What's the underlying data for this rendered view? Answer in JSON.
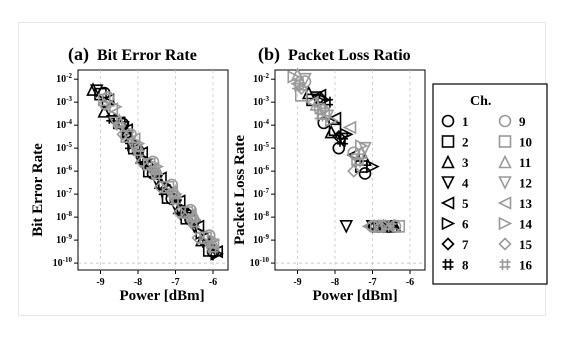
{
  "chart_data": [
    {
      "type": "scatter",
      "panel_label": "(a)",
      "title": "Bit Error Rate",
      "xlabel": "Power [dBm]",
      "ylabel": "Bit Error Rate",
      "xlim": [
        -9.6,
        -5.6
      ],
      "xticks": [
        -9,
        -8,
        -7,
        -6
      ],
      "xtick_labels": [
        "-9",
        "-8",
        "-7",
        "-6"
      ],
      "ylim_log10": [
        -10.3,
        -1.6
      ],
      "ylog": true,
      "yticks_exp": [
        -2,
        -3,
        -4,
        -5,
        -6,
        -7,
        -8,
        -9,
        -10
      ],
      "ytick_labels": [
        "10-2",
        "10-3",
        "10-4",
        "10-5",
        "10-6",
        "10-7",
        "10-8",
        "10-9",
        "10-10"
      ],
      "grid": "vertical-dashed",
      "floor_line": -10,
      "series": [
        {
          "name": "1",
          "points": [
            [
              -8.9,
              -2.6
            ],
            [
              -8.4,
              -3.95
            ],
            [
              -8.0,
              -5.1
            ],
            [
              -7.6,
              -6.1
            ],
            [
              -7.1,
              -7.2
            ],
            [
              -6.6,
              -8.1
            ],
            [
              -6.0,
              -9.5
            ]
          ]
        },
        {
          "name": "2",
          "points": [
            [
              -9.0,
              -2.65
            ],
            [
              -8.5,
              -3.9
            ],
            [
              -8.1,
              -5.0
            ],
            [
              -7.7,
              -6.0
            ],
            [
              -7.2,
              -7.15
            ],
            [
              -6.7,
              -8.05
            ],
            [
              -6.1,
              -9.45
            ]
          ]
        },
        {
          "name": "3",
          "points": [
            [
              -9.2,
              -2.45
            ],
            [
              -8.9,
              -3.4
            ],
            [
              -8.3,
              -4.3
            ],
            [
              -7.9,
              -5.4
            ],
            [
              -7.4,
              -6.5
            ],
            [
              -6.9,
              -7.6
            ],
            [
              -6.3,
              -9.0
            ]
          ]
        },
        {
          "name": "4",
          "points": [
            [
              -9.1,
              -2.5
            ],
            [
              -8.4,
              -4.1
            ],
            [
              -8.0,
              -5.3
            ],
            [
              -7.5,
              -6.4
            ],
            [
              -7.0,
              -7.5
            ],
            [
              -6.5,
              -8.4
            ],
            [
              -6.0,
              -9.6
            ]
          ]
        },
        {
          "name": "5",
          "points": [
            [
              -8.8,
              -2.9
            ],
            [
              -8.3,
              -4.2
            ],
            [
              -7.9,
              -5.2
            ],
            [
              -7.4,
              -6.3
            ],
            [
              -6.9,
              -7.3
            ],
            [
              -6.4,
              -8.4
            ],
            [
              -5.9,
              -9.5
            ]
          ]
        },
        {
          "name": "6",
          "points": [
            [
              -8.8,
              -3.0
            ],
            [
              -8.3,
              -4.3
            ],
            [
              -7.8,
              -5.5
            ],
            [
              -7.3,
              -6.6
            ],
            [
              -6.8,
              -7.7
            ],
            [
              -6.3,
              -8.7
            ],
            [
              -5.9,
              -9.6
            ]
          ]
        },
        {
          "name": "7",
          "points": [
            [
              -8.6,
              -3.8
            ],
            [
              -8.2,
              -4.7
            ],
            [
              -7.7,
              -5.8
            ],
            [
              -7.2,
              -6.8
            ],
            [
              -6.7,
              -7.8
            ],
            [
              -6.2,
              -8.9
            ]
          ]
        },
        {
          "name": "8",
          "points": [
            [
              -8.7,
              -3.7
            ],
            [
              -8.2,
              -4.9
            ],
            [
              -7.8,
              -5.7
            ],
            [
              -7.3,
              -6.9
            ],
            [
              -6.8,
              -7.9
            ],
            [
              -6.2,
              -9.1
            ]
          ]
        },
        {
          "name": "9",
          "points": [
            [
              -8.8,
              -2.8
            ],
            [
              -8.2,
              -4.4
            ],
            [
              -7.6,
              -5.6
            ],
            [
              -7.1,
              -6.6
            ],
            [
              -6.6,
              -7.7
            ],
            [
              -6.1,
              -8.8
            ]
          ]
        },
        {
          "name": "10",
          "points": [
            [
              -8.9,
              -2.9
            ],
            [
              -8.3,
              -4.5
            ],
            [
              -7.7,
              -5.7
            ],
            [
              -7.2,
              -6.7
            ],
            [
              -6.7,
              -7.8
            ],
            [
              -6.2,
              -8.9
            ]
          ]
        },
        {
          "name": "11",
          "points": [
            [
              -8.5,
              -3.8
            ],
            [
              -8.0,
              -4.9
            ],
            [
              -7.5,
              -5.9
            ],
            [
              -7.0,
              -6.9
            ],
            [
              -6.5,
              -7.9
            ],
            [
              -6.0,
              -9.1
            ]
          ]
        },
        {
          "name": "12",
          "points": [
            [
              -8.6,
              -3.9
            ],
            [
              -8.1,
              -5.0
            ],
            [
              -7.6,
              -6.1
            ],
            [
              -7.1,
              -7.1
            ],
            [
              -6.6,
              -8.2
            ],
            [
              -6.1,
              -9.3
            ]
          ]
        },
        {
          "name": "13",
          "points": [
            [
              -8.7,
              -3.3
            ],
            [
              -8.1,
              -4.6
            ],
            [
              -7.6,
              -5.9
            ],
            [
              -7.1,
              -6.9
            ],
            [
              -6.6,
              -8.0
            ],
            [
              -6.0,
              -9.2
            ]
          ]
        },
        {
          "name": "14",
          "points": [
            [
              -8.6,
              -3.2
            ],
            [
              -8.0,
              -4.8
            ],
            [
              -7.5,
              -5.8
            ],
            [
              -7.0,
              -7.0
            ],
            [
              -6.5,
              -8.1
            ],
            [
              -6.0,
              -9.0
            ]
          ]
        },
        {
          "name": "15",
          "points": [
            [
              -8.9,
              -3.1
            ],
            [
              -8.4,
              -4.4
            ],
            [
              -7.9,
              -5.6
            ],
            [
              -7.4,
              -6.7
            ],
            [
              -6.9,
              -7.8
            ],
            [
              -6.4,
              -8.9
            ]
          ]
        },
        {
          "name": "16",
          "points": [
            [
              -8.5,
              -4.0
            ],
            [
              -8.0,
              -5.2
            ],
            [
              -7.5,
              -6.2
            ],
            [
              -7.0,
              -7.3
            ],
            [
              -6.5,
              -8.3
            ],
            [
              -6.0,
              -9.4
            ]
          ]
        }
      ]
    },
    {
      "type": "scatter",
      "panel_label": "(b)",
      "title": "Packet Loss Ratio",
      "xlabel": "Power [dBm]",
      "ylabel": "Packet Loss Rate",
      "xlim": [
        -9.6,
        -5.6
      ],
      "xticks": [
        -9,
        -8,
        -7,
        -6
      ],
      "xtick_labels": [
        "-9",
        "-8",
        "-7",
        "-6"
      ],
      "ylim_log10": [
        -10.3,
        -1.6
      ],
      "ylog": true,
      "yticks_exp": [
        -2,
        -3,
        -4,
        -5,
        -6,
        -7,
        -8,
        -9,
        -10
      ],
      "ytick_labels": [
        "10-2",
        "10-3",
        "10-4",
        "10-5",
        "10-6",
        "10-7",
        "10-8",
        "10-9",
        "10-10"
      ],
      "grid": "vertical-dashed",
      "floor_line": -10,
      "series": [
        {
          "name": "1",
          "points": [
            [
              -8.3,
              -3.9
            ],
            [
              -7.9,
              -5.0
            ],
            [
              -7.2,
              -6.1
            ],
            [
              -6.9,
              -8.4
            ],
            [
              -6.6,
              -8.4
            ]
          ]
        },
        {
          "name": "2",
          "points": [
            [
              -8.6,
              -2.9
            ],
            [
              -8.0,
              -4.2
            ],
            [
              -7.3,
              -5.8
            ],
            [
              -6.8,
              -8.4
            ],
            [
              -6.5,
              -8.4
            ]
          ]
        },
        {
          "name": "3",
          "points": [
            [
              -8.7,
              -2.6
            ],
            [
              -8.1,
              -4.3
            ],
            [
              -7.2,
              -5.5
            ],
            [
              -6.7,
              -8.4
            ],
            [
              -6.4,
              -8.4
            ]
          ]
        },
        {
          "name": "4",
          "points": [
            [
              -8.5,
              -2.8
            ],
            [
              -7.8,
              -4.6
            ],
            [
              -7.7,
              -8.4
            ],
            [
              -7.0,
              -8.4
            ],
            [
              -6.7,
              -8.4
            ]
          ]
        },
        {
          "name": "5",
          "points": [
            [
              -8.4,
              -2.7
            ],
            [
              -8.0,
              -3.7
            ],
            [
              -7.5,
              -5.3
            ],
            [
              -7.0,
              -8.4
            ],
            [
              -6.6,
              -8.4
            ]
          ]
        },
        {
          "name": "6",
          "points": [
            [
              -8.3,
              -2.9
            ],
            [
              -7.7,
              -4.4
            ],
            [
              -7.0,
              -5.8
            ],
            [
              -6.8,
              -8.4
            ],
            [
              -6.5,
              -8.4
            ]
          ]
        },
        {
          "name": "7",
          "points": [
            [
              -8.4,
              -2.8
            ],
            [
              -7.9,
              -4.5
            ],
            [
              -7.0,
              -8.4
            ],
            [
              -6.6,
              -8.4
            ]
          ]
        },
        {
          "name": "8",
          "points": [
            [
              -8.2,
              -3.0
            ],
            [
              -7.8,
              -4.7
            ],
            [
              -6.9,
              -8.4
            ],
            [
              -6.5,
              -8.4
            ]
          ]
        },
        {
          "name": "9",
          "points": [
            [
              -8.8,
              -2.1
            ],
            [
              -8.4,
              -3.3
            ],
            [
              -7.5,
              -5.2
            ],
            [
              -7.0,
              -8.4
            ],
            [
              -6.4,
              -8.4
            ]
          ]
        },
        {
          "name": "10",
          "points": [
            [
              -8.9,
              -2.7
            ],
            [
              -8.3,
              -3.5
            ],
            [
              -7.4,
              -5.5
            ],
            [
              -6.9,
              -8.4
            ],
            [
              -6.3,
              -8.4
            ]
          ]
        },
        {
          "name": "11",
          "points": [
            [
              -9.0,
              -1.8
            ],
            [
              -8.5,
              -3.1
            ],
            [
              -7.3,
              -5.2
            ],
            [
              -6.8,
              -8.4
            ]
          ]
        },
        {
          "name": "12",
          "points": [
            [
              -8.8,
              -2.0
            ],
            [
              -8.2,
              -3.6
            ],
            [
              -7.2,
              -5.0
            ],
            [
              -6.7,
              -8.4
            ]
          ]
        },
        {
          "name": "13",
          "points": [
            [
              -9.0,
              -2.2
            ],
            [
              -8.6,
              -3.0
            ],
            [
              -7.6,
              -4.1
            ],
            [
              -7.1,
              -8.4
            ]
          ]
        },
        {
          "name": "14",
          "points": [
            [
              -9.1,
              -1.9
            ],
            [
              -8.1,
              -3.8
            ],
            [
              -7.3,
              -4.9
            ],
            [
              -6.6,
              -8.4
            ]
          ]
        },
        {
          "name": "15",
          "points": [
            [
              -8.9,
              -2.4
            ],
            [
              -8.3,
              -3.3
            ],
            [
              -7.5,
              -6.0
            ],
            [
              -6.8,
              -8.4
            ]
          ]
        },
        {
          "name": "16",
          "points": [
            [
              -9.0,
              -2.3
            ],
            [
              -8.4,
              -3.6
            ],
            [
              -7.4,
              -5.6
            ],
            [
              -6.5,
              -8.4
            ]
          ]
        }
      ]
    }
  ],
  "legend": {
    "title": "Ch.",
    "placement": "right",
    "entries": [
      {
        "name": "1",
        "marker": "circle",
        "color": "#000000"
      },
      {
        "name": "2",
        "marker": "square",
        "color": "#000000"
      },
      {
        "name": "3",
        "marker": "triangle-up",
        "color": "#000000"
      },
      {
        "name": "4",
        "marker": "triangle-down",
        "color": "#000000"
      },
      {
        "name": "5",
        "marker": "triangle-left",
        "color": "#000000"
      },
      {
        "name": "6",
        "marker": "triangle-right",
        "color": "#000000"
      },
      {
        "name": "7",
        "marker": "diamond",
        "color": "#000000"
      },
      {
        "name": "8",
        "marker": "hash",
        "color": "#000000"
      },
      {
        "name": "9",
        "marker": "circle",
        "color": "#9a9a9a"
      },
      {
        "name": "10",
        "marker": "square",
        "color": "#9a9a9a"
      },
      {
        "name": "11",
        "marker": "triangle-up",
        "color": "#9a9a9a"
      },
      {
        "name": "12",
        "marker": "triangle-down",
        "color": "#9a9a9a"
      },
      {
        "name": "13",
        "marker": "triangle-left",
        "color": "#9a9a9a"
      },
      {
        "name": "14",
        "marker": "triangle-right",
        "color": "#9a9a9a"
      },
      {
        "name": "15",
        "marker": "diamond",
        "color": "#9a9a9a"
      },
      {
        "name": "16",
        "marker": "hash",
        "color": "#9a9a9a"
      }
    ]
  }
}
